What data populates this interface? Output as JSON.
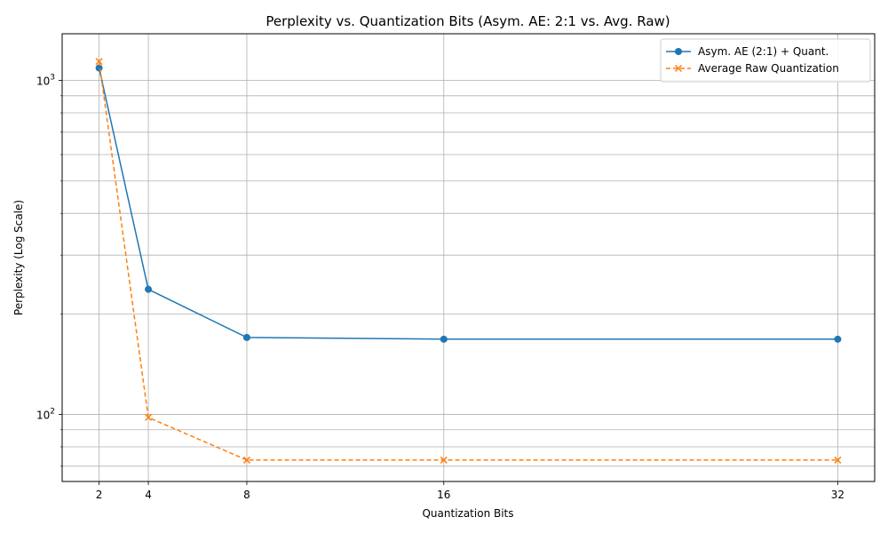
{
  "chart_data": {
    "type": "line",
    "title": "Perplexity vs. Quantization Bits (Asym. AE: 2:1 vs. Avg. Raw)",
    "xlabel": "Quantization Bits",
    "ylabel": "Perplexity (Log Scale)",
    "x_scale": "linear",
    "y_scale": "log",
    "xlim": [
      0.5,
      33.5
    ],
    "ylim": [
      63,
      1380
    ],
    "xticks": [
      2,
      4,
      8,
      16,
      32
    ],
    "yticks_major": [
      100,
      1000
    ],
    "yticks_major_labels": [
      "10^2",
      "10^3"
    ],
    "yticks_minor": [
      70,
      80,
      90,
      200,
      300,
      400,
      500,
      600,
      700,
      800,
      900
    ],
    "grid": true,
    "legend_position": "top-right",
    "x": [
      2,
      4,
      8,
      16,
      32
    ],
    "series": [
      {
        "name": "Asym. AE (2:1) + Quant.",
        "values": [
          1090,
          237,
          170,
          168,
          168
        ],
        "color": "#1f77b4",
        "line_style": "solid",
        "marker": "circle"
      },
      {
        "name": "Average Raw Quantization",
        "values": [
          1140,
          98,
          73,
          73,
          73
        ],
        "color": "#ff7f0e",
        "line_style": "dashed",
        "marker": "x"
      }
    ]
  }
}
